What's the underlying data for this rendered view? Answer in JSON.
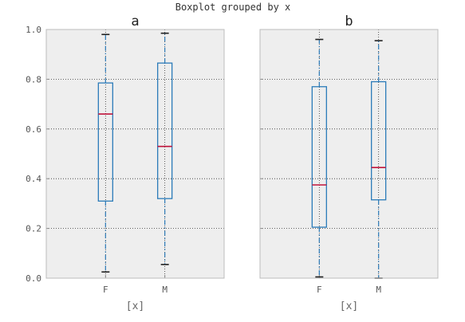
{
  "suptitle": "Boxplot grouped by x",
  "colors": {
    "panel_bg": "#eeeeee",
    "frame": "#bcbcbc",
    "grid": "#333333",
    "box": "#2b7bb9",
    "median": "#c0143c",
    "cap": "#222222",
    "tick_text": "#555555",
    "label_text": "#666666"
  },
  "chart_data": [
    {
      "type": "boxplot",
      "title": "a",
      "xlabel": "[x]",
      "categories": [
        "F",
        "M"
      ],
      "ylim": [
        0.0,
        1.0
      ],
      "yticks": [
        "0.0",
        "0.2",
        "0.4",
        "0.6",
        "0.8",
        "1.0"
      ],
      "grid": true,
      "boxes": [
        {
          "category": "F",
          "min": 0.025,
          "q1": 0.31,
          "median": 0.66,
          "q3": 0.785,
          "max": 0.98
        },
        {
          "category": "M",
          "min": 0.055,
          "q1": 0.32,
          "median": 0.53,
          "q3": 0.865,
          "max": 0.985
        }
      ]
    },
    {
      "type": "boxplot",
      "title": "b",
      "xlabel": "[x]",
      "categories": [
        "F",
        "M"
      ],
      "ylim": [
        0.0,
        1.0
      ],
      "grid": true,
      "boxes": [
        {
          "category": "F",
          "min": 0.005,
          "q1": 0.205,
          "median": 0.375,
          "q3": 0.77,
          "max": 0.96
        },
        {
          "category": "M",
          "min": 0.0,
          "q1": 0.315,
          "median": 0.445,
          "q3": 0.79,
          "max": 0.955
        }
      ]
    }
  ]
}
